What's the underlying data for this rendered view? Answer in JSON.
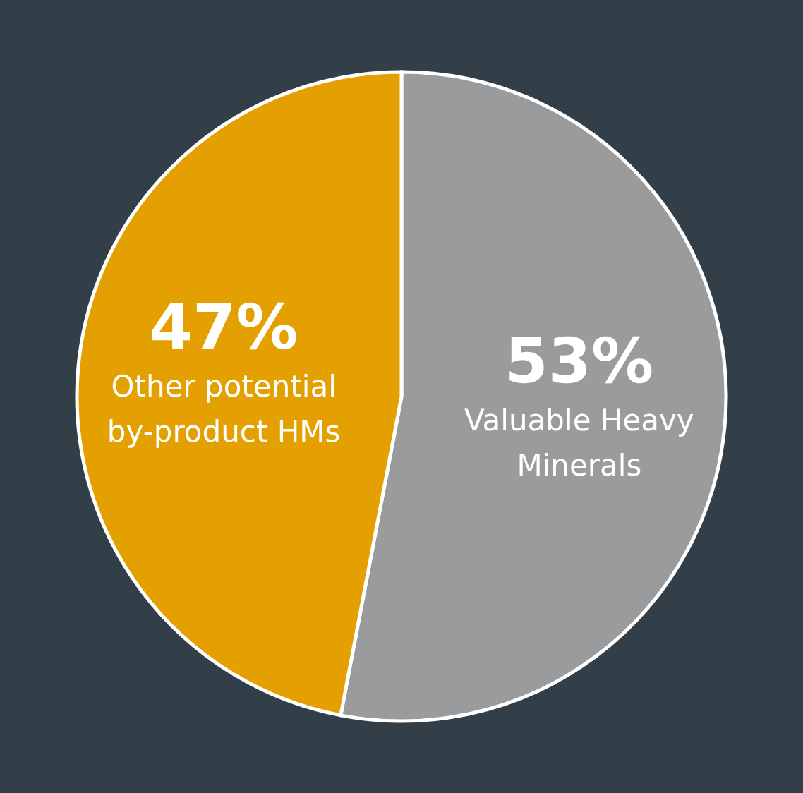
{
  "chart_data": {
    "type": "pie",
    "categories": [
      "Valuable Heavy Minerals",
      "Other potential by-product HMs"
    ],
    "values": [
      53,
      47
    ],
    "colors": [
      "#9a9b9d",
      "#e3a000"
    ],
    "value_labels": [
      "53%",
      "47%"
    ]
  }
}
